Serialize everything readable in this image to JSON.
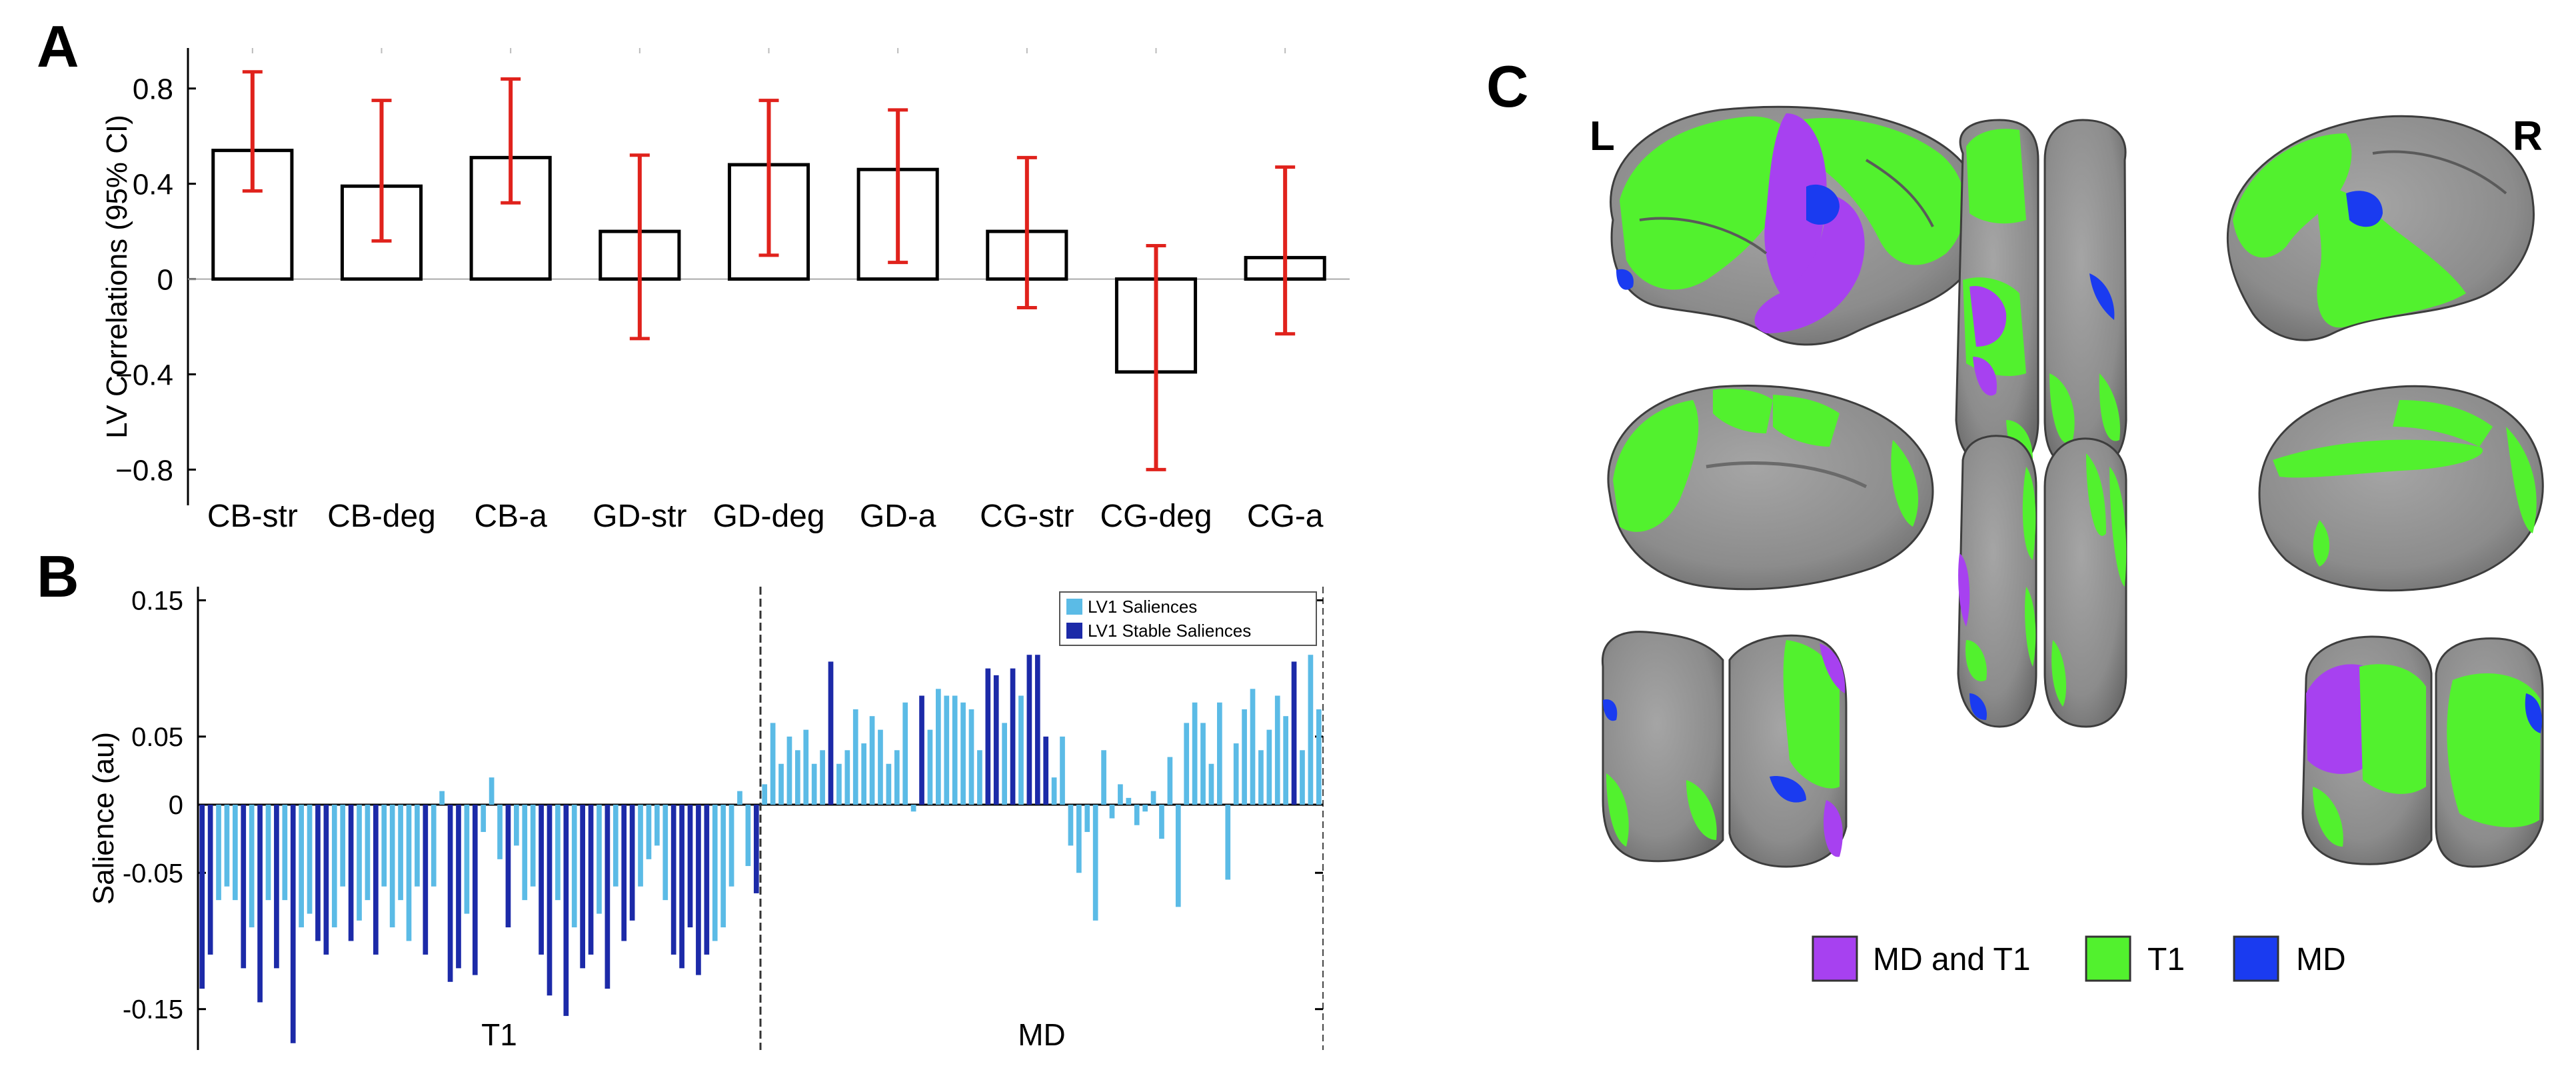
{
  "panels": {
    "a": {
      "letter": "A"
    },
    "b": {
      "letter": "B"
    },
    "c": {
      "letter": "C"
    }
  },
  "chart_data": [
    {
      "panel": "A",
      "type": "bar",
      "ylabel": "LV Correlations (95% CI)",
      "categories": [
        "CB-str",
        "CB-deg",
        "CB-a",
        "GD-str",
        "GD-deg",
        "GD-a",
        "CG-str",
        "CG-deg",
        "CG-a"
      ],
      "values": [
        0.54,
        0.39,
        0.51,
        0.2,
        0.48,
        0.46,
        0.2,
        -0.39,
        0.09
      ],
      "ci_low": [
        0.37,
        0.16,
        0.32,
        -0.25,
        0.1,
        0.07,
        -0.12,
        -0.8,
        -0.23
      ],
      "ci_high": [
        0.87,
        0.75,
        0.84,
        0.52,
        0.75,
        0.71,
        0.51,
        0.14,
        0.47
      ],
      "ylim": [
        -0.95,
        0.97
      ],
      "yticks": [
        -0.8,
        -0.4,
        0,
        0.4,
        0.8
      ],
      "ytick_labels": [
        "−0.8",
        "−0.4",
        "0",
        "0.4",
        "0.8"
      ],
      "bar_fill": "#ffffff",
      "bar_stroke": "#000000",
      "errorbar_color": "#e0221c"
    },
    {
      "panel": "B",
      "type": "bar",
      "ylabel": "Salience (au)",
      "ylim": [
        -0.18,
        0.16
      ],
      "yticks": [
        -0.15,
        -0.05,
        0,
        0.05,
        0.15
      ],
      "ytick_labels": [
        "-0.15",
        "-0.05",
        "0",
        "0.05",
        "0.15"
      ],
      "group_labels": [
        "T1",
        "MD"
      ],
      "group_sizes": [
        68,
        68
      ],
      "legend": {
        "position": "top-right",
        "entries": [
          "LV1 Saliences",
          "LV1 Stable Saliences"
        ]
      },
      "colors": {
        "salience": "#5bbbe6",
        "stable": "#1c2aa8"
      },
      "values": [
        -0.135,
        -0.11,
        -0.07,
        -0.06,
        -0.07,
        -0.12,
        -0.09,
        -0.145,
        -0.07,
        -0.12,
        -0.07,
        -0.175,
        -0.09,
        -0.08,
        -0.1,
        -0.11,
        -0.09,
        -0.06,
        -0.1,
        -0.085,
        -0.07,
        -0.11,
        -0.06,
        -0.09,
        -0.07,
        -0.1,
        -0.06,
        -0.11,
        -0.06,
        0.01,
        -0.13,
        -0.12,
        -0.08,
        -0.125,
        -0.02,
        0.02,
        -0.04,
        -0.09,
        -0.03,
        -0.07,
        -0.06,
        -0.11,
        -0.14,
        -0.07,
        -0.155,
        -0.09,
        -0.12,
        -0.11,
        -0.08,
        -0.135,
        -0.06,
        -0.1,
        -0.085,
        -0.06,
        -0.04,
        -0.03,
        -0.07,
        -0.11,
        -0.12,
        -0.09,
        -0.125,
        -0.11,
        -0.1,
        -0.09,
        -0.06,
        0.01,
        -0.045,
        -0.065,
        0.015,
        0.06,
        0.03,
        0.05,
        0.04,
        0.055,
        0.03,
        0.04,
        0.105,
        0.03,
        0.04,
        0.07,
        0.045,
        0.065,
        0.055,
        0.03,
        0.04,
        0.075,
        -0.005,
        0.08,
        0.055,
        0.085,
        0.08,
        0.08,
        0.075,
        0.07,
        0.04,
        0.1,
        0.095,
        0.06,
        0.1,
        0.08,
        0.11,
        0.11,
        0.05,
        0.02,
        0.05,
        -0.03,
        -0.05,
        -0.02,
        -0.085,
        0.04,
        -0.01,
        0.015,
        0.005,
        -0.015,
        -0.005,
        0.01,
        -0.025,
        0.035,
        -0.075,
        0.06,
        0.075,
        0.06,
        0.03,
        0.075,
        -0.055,
        0.045,
        0.07,
        0.085,
        0.04,
        0.055,
        0.08,
        0.065,
        0.105,
        0.04,
        0.11,
        0.07
      ],
      "stable": [
        1,
        1,
        0,
        0,
        0,
        1,
        0,
        1,
        0,
        1,
        0,
        1,
        0,
        0,
        1,
        1,
        0,
        0,
        1,
        0,
        0,
        1,
        0,
        0,
        0,
        0,
        0,
        1,
        0,
        0,
        1,
        1,
        0,
        1,
        0,
        0,
        0,
        1,
        0,
        0,
        0,
        1,
        1,
        0,
        1,
        0,
        1,
        1,
        0,
        1,
        0,
        1,
        1,
        0,
        0,
        0,
        0,
        1,
        1,
        1,
        1,
        1,
        0,
        0,
        0,
        0,
        0,
        1,
        0,
        0,
        0,
        0,
        0,
        0,
        0,
        0,
        1,
        0,
        0,
        0,
        0,
        0,
        0,
        0,
        0,
        0,
        0,
        1,
        0,
        0,
        0,
        0,
        0,
        0,
        0,
        1,
        1,
        0,
        1,
        0,
        1,
        1,
        1,
        0,
        0,
        0,
        0,
        0,
        0,
        0,
        0,
        0,
        0,
        0,
        0,
        0,
        0,
        0,
        0,
        0,
        0,
        0,
        0,
        0,
        0,
        0,
        0,
        0,
        0,
        0,
        0,
        0,
        1,
        0,
        0,
        0
      ]
    }
  ],
  "brain_figure": {
    "hemisphere_labels": {
      "left": "L",
      "right": "R"
    },
    "legend": [
      {
        "label": "MD and T1",
        "color": "#a741f0"
      },
      {
        "label": "T1",
        "color": "#52f12e"
      },
      {
        "label": "MD",
        "color": "#1a3bf0"
      }
    ],
    "colors": {
      "cortex": "#8c8c8c",
      "cortex_dark": "#6f6f6f",
      "outline": "#3d3d3d"
    }
  }
}
